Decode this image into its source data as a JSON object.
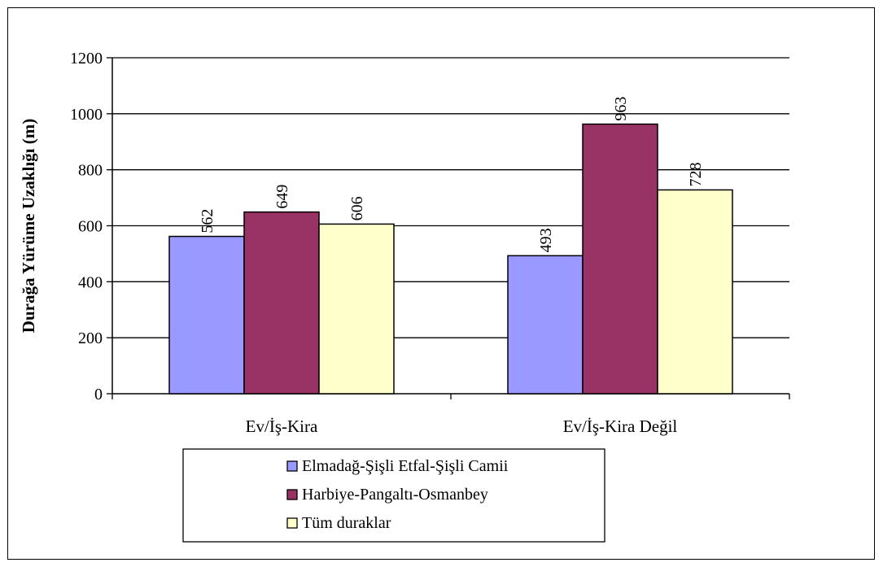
{
  "chart_data": {
    "type": "bar",
    "categories": [
      "Ev/İş-Kira",
      "Ev/İş-Kira Değil"
    ],
    "series": [
      {
        "name": "Elmadağ-Şişli Etfal-Şişli Camii",
        "values": [
          562,
          493
        ],
        "color": "#9999ff"
      },
      {
        "name": "Harbiye-Pangaltı-Osmanbey",
        "values": [
          649,
          963
        ],
        "color": "#993366"
      },
      {
        "name": "Tüm duraklar",
        "values": [
          606,
          728
        ],
        "color": "#ffffcc"
      }
    ],
    "title": "",
    "xlabel": "",
    "ylabel": "Durağa Yürüme Uzaklığı (m)",
    "ylim": [
      0,
      1200
    ],
    "yticks": [
      0,
      200,
      400,
      600,
      800,
      1000,
      1200
    ],
    "grid": true,
    "legend_position": "bottom"
  }
}
